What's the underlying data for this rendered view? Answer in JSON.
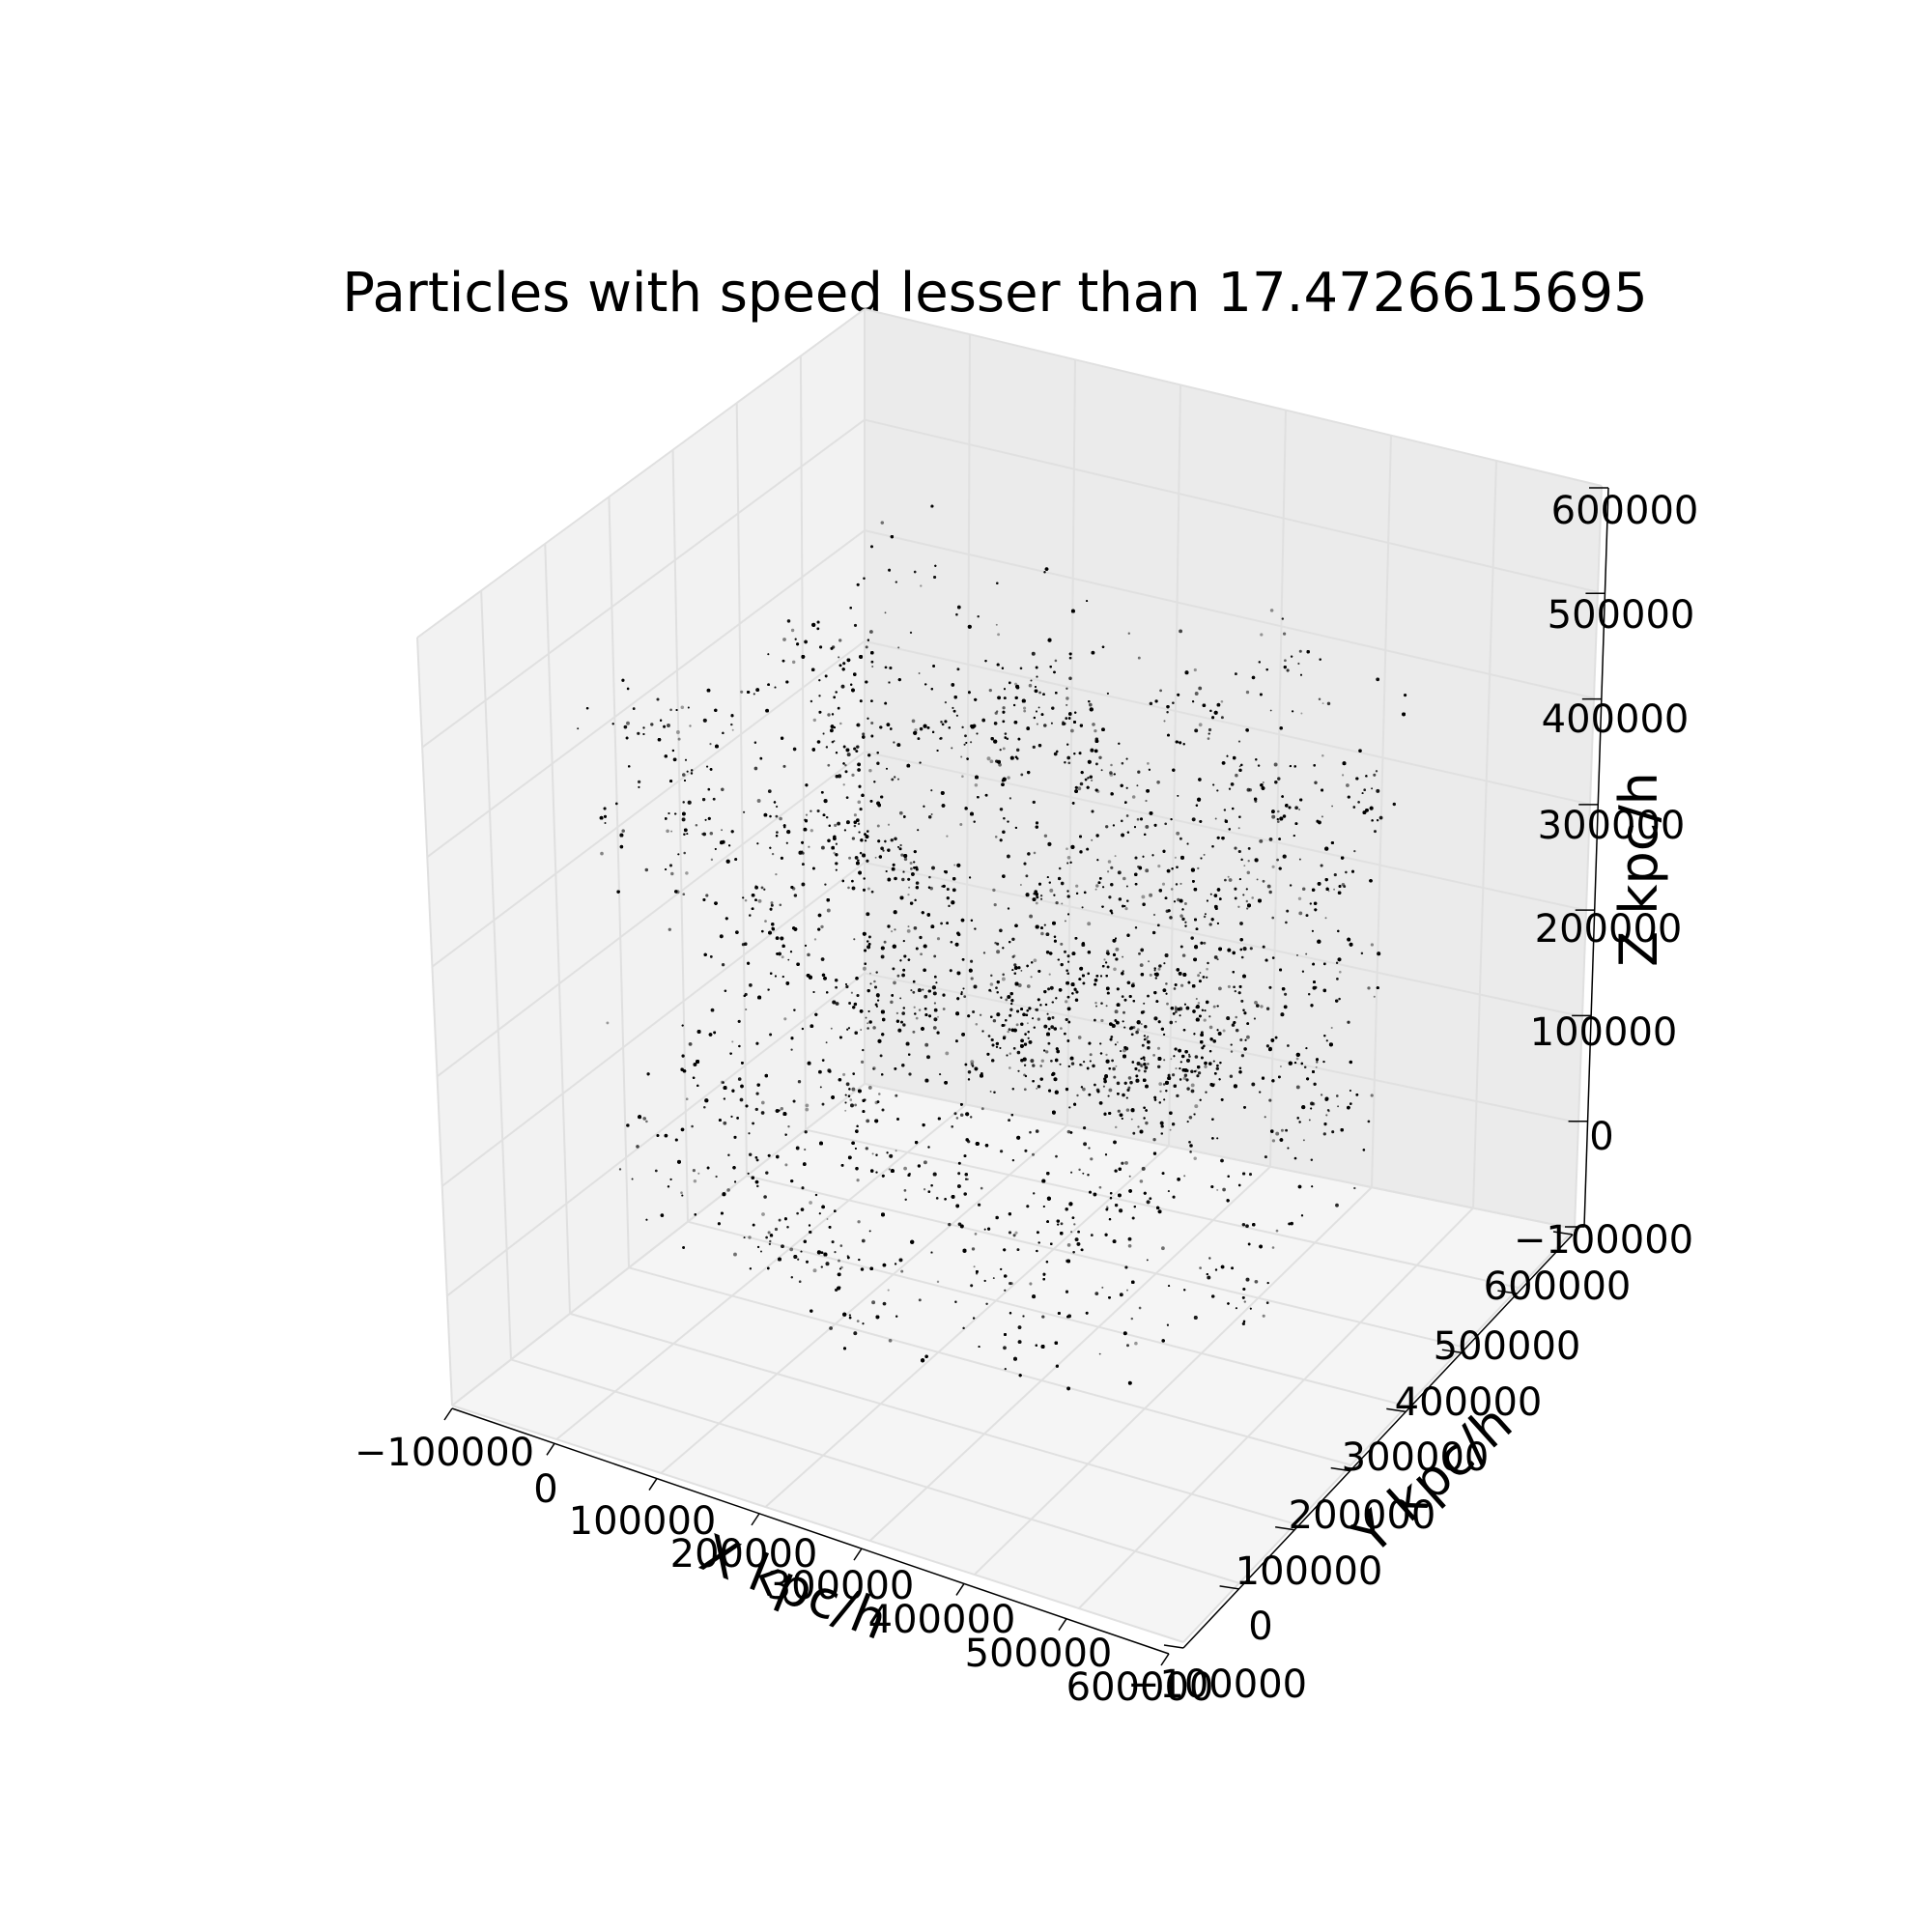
{
  "chart_data": {
    "type": "scatter",
    "projection": "3d",
    "title": "Particles with speed lesser than 17.4726615695",
    "xlabel": "X kpc/h",
    "ylabel": "Y kpc/h",
    "zlabel": "Z kpc/h",
    "xlim": [
      -100000,
      600000
    ],
    "ylim": [
      -100000,
      600000
    ],
    "zlim": [
      -100000,
      600000
    ],
    "x_ticks": [
      "−100000",
      "0",
      "100000",
      "200000",
      "300000",
      "400000",
      "500000",
      "600000"
    ],
    "y_ticks": [
      "−100000",
      "0",
      "100000",
      "200000",
      "300000",
      "400000",
      "500000",
      "600000"
    ],
    "z_ticks": [
      "−100000",
      "0",
      "100000",
      "200000",
      "300000",
      "400000",
      "500000",
      "600000"
    ],
    "x_tick_values": [
      -100000,
      0,
      100000,
      200000,
      300000,
      400000,
      500000,
      600000
    ],
    "y_tick_values": [
      -100000,
      0,
      100000,
      200000,
      300000,
      400000,
      500000,
      600000
    ],
    "z_tick_values": [
      -100000,
      0,
      100000,
      200000,
      300000,
      400000,
      500000,
      600000
    ],
    "grid": true,
    "marker_color": "#000000",
    "pane_colors": [
      "#f2f2f2",
      "#ebebeb",
      "#f5f5f5"
    ],
    "grid_color": "#e0e0e0",
    "point_cloud": {
      "description": "dense cloud of black particles filling the cube volume",
      "x_range": [
        0,
        500000
      ],
      "y_range": [
        0,
        500000
      ],
      "z_range": [
        0,
        500000
      ]
    }
  }
}
